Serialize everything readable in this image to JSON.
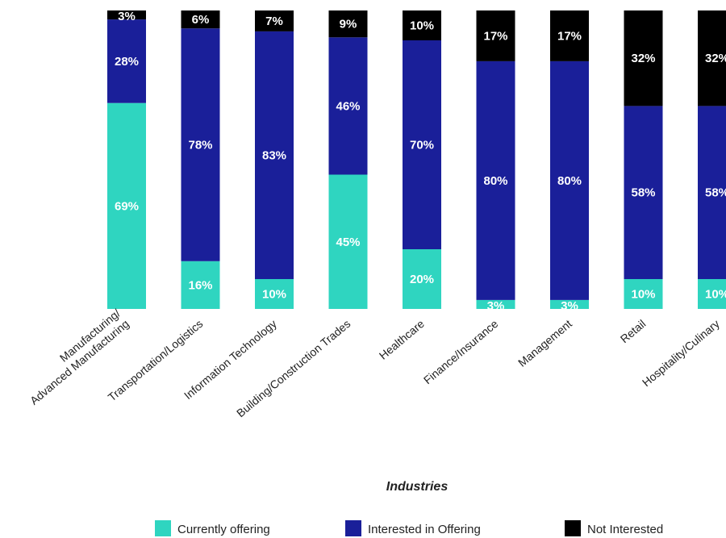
{
  "chart_data": {
    "type": "bar",
    "stacked": true,
    "percent_stacked": true,
    "xlabel": "Industries",
    "ylabel": "",
    "ylim": [
      0,
      100
    ],
    "grid": false,
    "legend_position": "bottom",
    "categories": [
      "Manufacturing/\nAdvanced Manufacturing",
      "Transportation/Logistics",
      "Information Technology",
      "Building/Construction Trades",
      "Healthcare",
      "Finance/Insurance",
      "Management",
      "Retail",
      "Hospitality/Culinary"
    ],
    "series": [
      {
        "name": "Currently offering",
        "color": "#2fd5c0",
        "label_color": "#ffffff",
        "values": [
          69,
          16,
          10,
          45,
          20,
          3,
          3,
          10,
          10
        ]
      },
      {
        "name": "Interested in Offering",
        "color": "#1a1f99",
        "label_color": "#ffffff",
        "values": [
          28,
          78,
          83,
          46,
          70,
          80,
          80,
          58,
          58
        ]
      },
      {
        "name": "Not Interested",
        "color": "#000000",
        "label_color": "#ffffff",
        "values": [
          3,
          6,
          7,
          9,
          10,
          17,
          17,
          32,
          32
        ]
      }
    ]
  }
}
